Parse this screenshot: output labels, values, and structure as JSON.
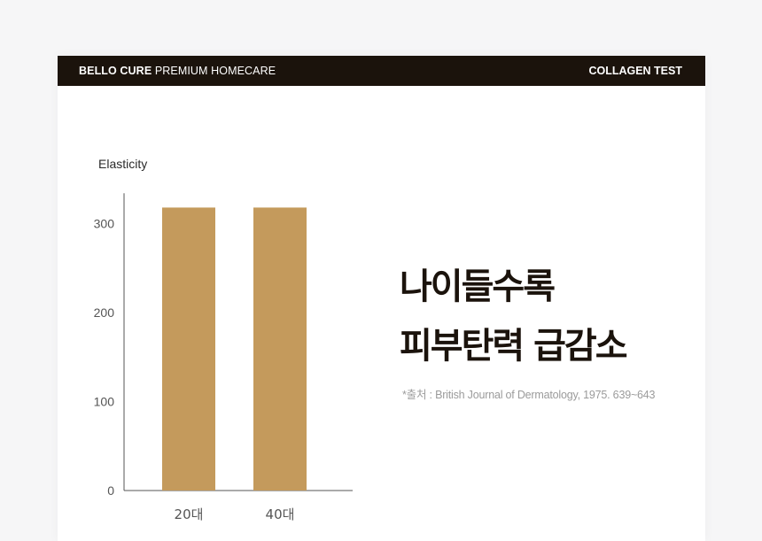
{
  "header": {
    "brand_bold": "BELLO CURE",
    "brand_rest": "PREMIUM HOMECARE",
    "section": "COLLAGEN TEST"
  },
  "headline": {
    "line1": "나이들수록",
    "line2": "피부탄력 급감소"
  },
  "source": "*출처 : British Journal of Dermatology, 1975. 639~643",
  "colors": {
    "bar": "#c49a5c",
    "header_bg": "#1b130c",
    "headline": "#1b130c"
  },
  "chart_data": {
    "type": "bar",
    "ylabel": "Elasticity",
    "xlabel": "",
    "categories": [
      "20대",
      "40대"
    ],
    "values": [
      318,
      318
    ],
    "ylim": [
      0,
      340
    ],
    "yticks": [
      0,
      100,
      200,
      300
    ],
    "grid": false,
    "legend": "none"
  }
}
